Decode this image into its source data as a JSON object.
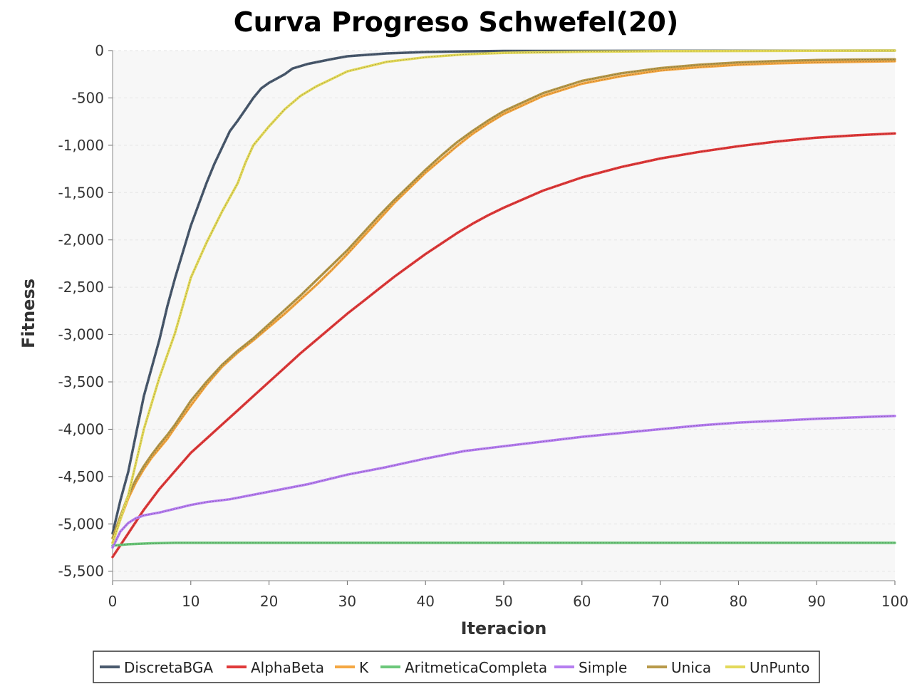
{
  "chart_data": {
    "type": "line",
    "title": "Curva Progreso Schwefel(20)",
    "xlabel": "Iteracion",
    "ylabel": "Fitness",
    "xlim": [
      0,
      100
    ],
    "ylim": [
      -5600,
      0
    ],
    "x_ticks": [
      0,
      10,
      20,
      30,
      40,
      50,
      60,
      70,
      80,
      90,
      100
    ],
    "x_tick_labels": [
      "0",
      "10",
      "20",
      "30",
      "40",
      "50",
      "60",
      "70",
      "80",
      "90",
      "100"
    ],
    "y_ticks": [
      0,
      -500,
      -1000,
      -1500,
      -2000,
      -2500,
      -3000,
      -3500,
      -4000,
      -4500,
      -5000,
      -5500
    ],
    "y_tick_labels": [
      "0",
      "-500",
      "-1,000",
      "-1,500",
      "-2,000",
      "-2,500",
      "-3,000",
      "-3,500",
      "-4,000",
      "-4,500",
      "-5,000",
      "-5,500"
    ],
    "grid": true,
    "plot_background": "#f7f7f7",
    "legend_position": "bottom",
    "series": [
      {
        "name": "DiscretaBGA",
        "color": "#4a5a6e",
        "x": [
          0,
          1,
          2,
          3,
          4,
          5,
          6,
          7,
          8,
          10,
          12,
          13,
          15,
          16,
          17,
          18,
          19,
          20,
          22,
          23,
          25,
          28,
          30,
          35,
          40,
          45,
          50,
          100
        ],
        "y": [
          -5100,
          -4750,
          -4450,
          -4050,
          -3650,
          -3350,
          -3050,
          -2700,
          -2400,
          -1850,
          -1400,
          -1200,
          -850,
          -740,
          -620,
          -500,
          -400,
          -340,
          -250,
          -190,
          -140,
          -90,
          -60,
          -30,
          -15,
          -8,
          -4,
          0
        ]
      },
      {
        "name": "AlphaBeta",
        "color": "#e03a3a",
        "x": [
          0,
          2,
          4,
          6,
          8,
          10,
          12,
          14,
          16,
          18,
          20,
          22,
          24,
          26,
          28,
          30,
          32,
          34,
          36,
          38,
          40,
          42,
          44,
          46,
          48,
          50,
          55,
          60,
          65,
          70,
          75,
          80,
          85,
          90,
          95,
          100
        ],
        "y": [
          -5350,
          -5100,
          -4850,
          -4630,
          -4440,
          -4250,
          -4100,
          -3950,
          -3800,
          -3650,
          -3500,
          -3350,
          -3200,
          -3060,
          -2920,
          -2780,
          -2650,
          -2520,
          -2390,
          -2270,
          -2150,
          -2040,
          -1930,
          -1830,
          -1740,
          -1660,
          -1480,
          -1340,
          -1230,
          -1140,
          -1070,
          -1010,
          -960,
          -920,
          -895,
          -875
        ]
      },
      {
        "name": "K",
        "color": "#f4a742",
        "x": [
          0,
          1,
          2,
          3,
          4,
          5,
          6,
          7,
          8,
          10,
          12,
          14,
          16,
          18,
          20,
          22,
          24,
          26,
          28,
          30,
          32,
          34,
          36,
          38,
          40,
          42,
          44,
          46,
          48,
          50,
          55,
          60,
          65,
          70,
          75,
          80,
          85,
          90,
          95,
          100
        ],
        "y": [
          -5200,
          -4950,
          -4730,
          -4560,
          -4420,
          -4300,
          -4200,
          -4100,
          -3980,
          -3750,
          -3530,
          -3340,
          -3190,
          -3060,
          -2920,
          -2780,
          -2630,
          -2480,
          -2320,
          -2150,
          -1970,
          -1790,
          -1610,
          -1450,
          -1290,
          -1150,
          -1010,
          -880,
          -770,
          -670,
          -480,
          -350,
          -270,
          -210,
          -175,
          -150,
          -135,
          -125,
          -118,
          -112
        ]
      },
      {
        "name": "AritmeticaCompleta",
        "color": "#6cc77a",
        "x": [
          0,
          2,
          5,
          8,
          10,
          20,
          40,
          60,
          80,
          100
        ],
        "y": [
          -5230,
          -5215,
          -5205,
          -5200,
          -5200,
          -5200,
          -5200,
          -5200,
          -5200,
          -5200
        ]
      },
      {
        "name": "Simple",
        "color": "#b67ef0",
        "x": [
          0,
          1,
          2,
          3,
          4,
          6,
          8,
          10,
          12,
          15,
          20,
          25,
          30,
          35,
          40,
          45,
          50,
          55,
          60,
          65,
          70,
          75,
          80,
          85,
          90,
          95,
          100
        ],
        "y": [
          -5250,
          -5080,
          -4990,
          -4940,
          -4910,
          -4880,
          -4840,
          -4800,
          -4770,
          -4740,
          -4660,
          -4580,
          -4480,
          -4400,
          -4310,
          -4230,
          -4180,
          -4130,
          -4080,
          -4040,
          -4000,
          -3960,
          -3930,
          -3910,
          -3890,
          -3875,
          -3860
        ]
      },
      {
        "name": "Unica",
        "color": "#b89a4a",
        "x": [
          0,
          1,
          2,
          3,
          4,
          5,
          6,
          7,
          8,
          10,
          12,
          14,
          16,
          18,
          20,
          22,
          24,
          26,
          28,
          30,
          32,
          34,
          36,
          38,
          40,
          42,
          44,
          46,
          48,
          50,
          55,
          60,
          65,
          70,
          75,
          80,
          85,
          90,
          95,
          100
        ],
        "y": [
          -5150,
          -4920,
          -4700,
          -4530,
          -4390,
          -4270,
          -4160,
          -4060,
          -3950,
          -3700,
          -3500,
          -3320,
          -3170,
          -3040,
          -2890,
          -2740,
          -2590,
          -2430,
          -2270,
          -2110,
          -1930,
          -1750,
          -1580,
          -1420,
          -1260,
          -1110,
          -970,
          -850,
          -740,
          -640,
          -450,
          -320,
          -240,
          -185,
          -150,
          -125,
          -110,
          -100,
          -95,
          -92
        ]
      },
      {
        "name": "UnPunto",
        "color": "#e3d95a",
        "x": [
          0,
          2,
          4,
          6,
          8,
          10,
          12,
          14,
          16,
          17,
          18,
          20,
          22,
          24,
          26,
          28,
          30,
          35,
          40,
          45,
          50,
          60,
          70,
          100
        ],
        "y": [
          -5200,
          -4700,
          -4000,
          -3450,
          -2980,
          -2400,
          -2030,
          -1700,
          -1400,
          -1180,
          -1000,
          -800,
          -620,
          -480,
          -380,
          -300,
          -220,
          -120,
          -70,
          -40,
          -25,
          -12,
          -6,
          0
        ]
      }
    ]
  }
}
